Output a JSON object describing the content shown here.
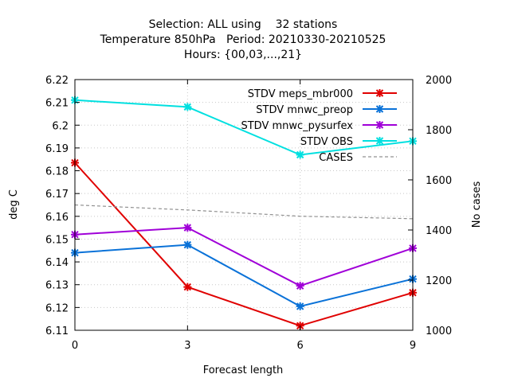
{
  "chart_data": {
    "type": "line",
    "title_lines": [
      "Selection: ALL using    32 stations",
      "Temperature 850hPa   Period: 20210330-20210525",
      "Hours: {00,03,...,21}"
    ],
    "xlabel": "Forecast length",
    "ylabel": "deg C",
    "y2label": "No cases",
    "x": [
      0,
      3,
      6,
      9
    ],
    "xlim": [
      0,
      9
    ],
    "ylim": [
      6.11,
      6.22
    ],
    "y2lim": [
      1000,
      2000
    ],
    "xticks": [
      0,
      3,
      6,
      9
    ],
    "yticks": [
      6.11,
      6.12,
      6.13,
      6.14,
      6.15,
      6.16,
      6.17,
      6.18,
      6.19,
      6.2,
      6.21,
      6.22
    ],
    "ytick_labels": [
      "6.11",
      "6.12",
      "6.13",
      "6.14",
      "6.15",
      "6.16",
      "6.17",
      "6.18",
      "6.19",
      "6.2",
      "6.21",
      "6.22"
    ],
    "y2ticks": [
      1000,
      1200,
      1400,
      1600,
      1800,
      2000
    ],
    "grid": true,
    "legend_position": "top-right",
    "series": [
      {
        "name": "STDV meps_mbr000",
        "color": "#e00000",
        "axis": "y",
        "values": [
          6.1835,
          6.129,
          6.112,
          6.1265
        ]
      },
      {
        "name": "STDV mnwc_preop",
        "color": "#0a72d8",
        "axis": "y",
        "values": [
          6.144,
          6.1475,
          6.1205,
          6.1325
        ]
      },
      {
        "name": "STDV mnwc_pysurfex",
        "color": "#a000d8",
        "axis": "y",
        "values": [
          6.152,
          6.155,
          6.1295,
          6.146
        ]
      },
      {
        "name": "STDV OBS",
        "color": "#00e0e0",
        "axis": "y",
        "values": [
          6.211,
          6.208,
          6.187,
          6.193
        ]
      },
      {
        "name": "CASES",
        "color": "#909090",
        "axis": "y2",
        "dashed": true,
        "values": [
          1500,
          1480,
          1455,
          1445
        ]
      }
    ]
  }
}
